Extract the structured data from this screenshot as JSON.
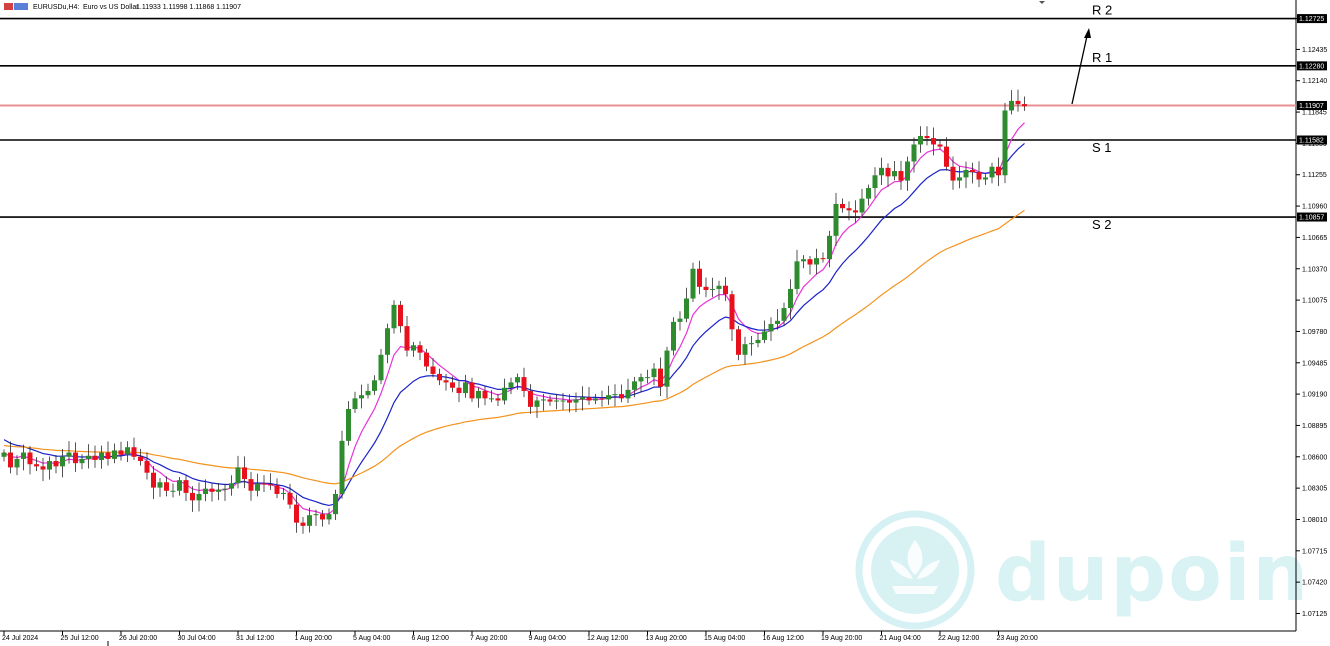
{
  "header": {
    "symbol": "EURUSDu,H4:",
    "description": "Euro vs US Dollar",
    "ohlc": "1.11933 1.11998 1.11868 1.11907"
  },
  "watermark": {
    "text": "dupoin"
  },
  "colors": {
    "bull": "#2e8b2e",
    "bear": "#e8101c",
    "ma_fast": "#e834d8",
    "ma_mid": "#1a22c8",
    "ma_slow": "#f4921c",
    "current_line": "#e89090",
    "watermark": "#cdeef1"
  },
  "chart_data": {
    "type": "candlestick",
    "symbol": "EURUSDu",
    "timeframe": "H4",
    "ylim": [
      1.0696,
      1.129
    ],
    "y_ticks": [
      "1.12725",
      "1.12435",
      "1.12140",
      "1.11845",
      "1.11550",
      "1.11255",
      "1.10960",
      "1.10665",
      "1.10370",
      "1.10075",
      "1.09780",
      "1.09485",
      "1.09190",
      "1.08895",
      "1.08600",
      "1.08305",
      "1.08010",
      "1.07715",
      "1.07420",
      "1.07125"
    ],
    "x_tick_labels": [
      {
        "i": 0,
        "label": "24 Jul 2024"
      },
      {
        "i": 9,
        "label": "25 Jul 12:00"
      },
      {
        "i": 18,
        "label": "26 Jul 20:00"
      },
      {
        "i": 27,
        "label": "30 Jul 04:00"
      },
      {
        "i": 36,
        "label": "31 Jul 12:00"
      },
      {
        "i": 45,
        "label": "1 Aug 20:00"
      },
      {
        "i": 54,
        "label": "5 Aug 04:00"
      },
      {
        "i": 63,
        "label": "6 Aug 12:00"
      },
      {
        "i": 72,
        "label": "7 Aug 20:00"
      },
      {
        "i": 81,
        "label": "9 Aug 04:00"
      },
      {
        "i": 90,
        "label": "12 Aug 12:00"
      },
      {
        "i": 99,
        "label": "13 Aug 20:00"
      },
      {
        "i": 108,
        "label": "15 Aug 04:00"
      },
      {
        "i": 117,
        "label": "16 Aug 12:00"
      },
      {
        "i": 126,
        "label": "19 Aug 20:00"
      },
      {
        "i": 135,
        "label": "21 Aug 04:00"
      },
      {
        "i": 144,
        "label": "22 Aug 12:00"
      },
      {
        "i": 153,
        "label": "23 Aug 20:00"
      }
    ],
    "levels": [
      {
        "name": "R 2",
        "price": 1.12725,
        "tag": "1.12725"
      },
      {
        "name": "R 1",
        "price": 1.1228,
        "tag": "1.12280"
      },
      {
        "name": "S 1",
        "price": 1.11582,
        "tag": "1.11582"
      },
      {
        "name": "S 2",
        "price": 1.10857,
        "tag": "1.10857"
      }
    ],
    "current_price": {
      "price": 1.11907,
      "tag": "1.11907"
    },
    "closes": [
      1.0864,
      1.085,
      1.0858,
      1.0864,
      1.0853,
      1.0851,
      1.0848,
      1.0856,
      1.0851,
      1.086,
      1.0864,
      1.0854,
      1.0858,
      1.0861,
      1.0857,
      1.0864,
      1.0858,
      1.0866,
      1.0862,
      1.0869,
      1.086,
      1.0856,
      1.0845,
      1.0831,
      1.0836,
      1.0828,
      1.0828,
      1.0838,
      1.0826,
      1.0819,
      1.0825,
      1.083,
      1.0827,
      1.0829,
      1.083,
      1.0835,
      1.085,
      1.0839,
      1.0828,
      1.0835,
      1.0834,
      1.0833,
      1.0825,
      1.0826,
      1.0815,
      1.0798,
      1.0795,
      1.0805,
      1.0806,
      1.0801,
      1.0806,
      1.0825,
      1.0875,
      1.0905,
      1.0915,
      1.0918,
      1.0922,
      1.0932,
      1.0956,
      1.0981,
      1.1003,
      1.0983,
      1.096,
      1.0965,
      1.0958,
      1.0945,
      1.0938,
      1.0932,
      1.093,
      1.0925,
      1.092,
      1.093,
      1.0915,
      1.0922,
      1.0915,
      1.0915,
      1.0913,
      1.0925,
      1.093,
      1.0935,
      1.0922,
      1.0907,
      1.0913,
      1.0914,
      1.0912,
      1.0913,
      1.0913,
      1.0911,
      1.0914,
      1.0916,
      1.0913,
      1.0915,
      1.0914,
      1.0918,
      1.0919,
      1.0915,
      1.0923,
      1.0931,
      1.0935,
      1.0935,
      1.0943,
      1.0926,
      1.096,
      1.0987,
      1.099,
      1.1009,
      1.1037,
      1.102,
      1.1017,
      1.1018,
      1.1021,
      1.1013,
      1.098,
      1.0956,
      1.0966,
      1.0967,
      1.097,
      1.0978,
      1.0985,
      1.0988,
      1.1,
      1.1018,
      1.1044,
      1.1046,
      1.1041,
      1.1047,
      1.1046,
      1.1068,
      1.1098,
      1.1094,
      1.1092,
      1.109,
      1.1103,
      1.1113,
      1.1125,
      1.1132,
      1.1124,
      1.1129,
      1.112,
      1.1138,
      1.1154,
      1.1162,
      1.116,
      1.1154,
      1.1152,
      1.1133,
      1.112,
      1.1123,
      1.113,
      1.1128,
      1.1121,
      1.1123,
      1.1133,
      1.1125,
      1.1186,
      1.1195,
      1.1192,
      1.119
    ]
  }
}
